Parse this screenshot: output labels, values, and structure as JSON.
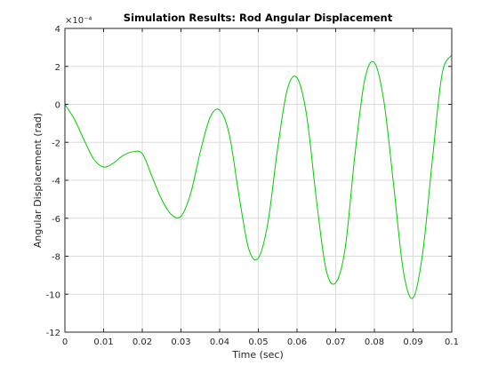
{
  "chart_data": {
    "type": "line",
    "title": "Simulation Results: Rod Angular Displacement",
    "xlabel": "Time (sec)",
    "ylabel": "Angular Displacement (rad)",
    "y_exponent_label": "×10⁻⁴",
    "xlim": [
      0,
      0.1
    ],
    "ylim": [
      -12,
      4
    ],
    "y_scale_factor": 0.0001,
    "grid": true,
    "xticks": [
      "0",
      "0.01",
      "0.02",
      "0.03",
      "0.04",
      "0.05",
      "0.06",
      "0.07",
      "0.08",
      "0.09",
      "0.1"
    ],
    "yticks": [
      "4",
      "2",
      "0",
      "-2",
      "-4",
      "-6",
      "-8",
      "-10",
      "-12"
    ],
    "series": [
      {
        "color": "#00cc00",
        "x": [
          0,
          0.0025,
          0.005,
          0.0075,
          0.01,
          0.0125,
          0.015,
          0.0175,
          0.02,
          0.0225,
          0.025,
          0.0275,
          0.03,
          0.0325,
          0.035,
          0.0375,
          0.04,
          0.0425,
          0.045,
          0.0475,
          0.05,
          0.0525,
          0.055,
          0.0575,
          0.06,
          0.0625,
          0.065,
          0.0675,
          0.07,
          0.0725,
          0.075,
          0.0775,
          0.08,
          0.0825,
          0.085,
          0.0875,
          0.09,
          0.0925,
          0.095,
          0.0975,
          0.1
        ],
        "y": [
          0,
          -0.8,
          -1.9,
          -2.9,
          -3.3,
          -3.1,
          -2.7,
          -2.5,
          -2.6,
          -3.8,
          -5.0,
          -5.8,
          -5.9,
          -4.7,
          -2.5,
          -0.7,
          -0.3,
          -1.6,
          -4.8,
          -7.6,
          -8.1,
          -6.2,
          -2.3,
          0.8,
          1.4,
          -0.6,
          -5.0,
          -8.7,
          -9.4,
          -7.5,
          -2.6,
          1.3,
          2.2,
          0.1,
          -4.3,
          -8.8,
          -10.2,
          -7.8,
          -2.9,
          1.6,
          2.6
        ]
      }
    ]
  }
}
